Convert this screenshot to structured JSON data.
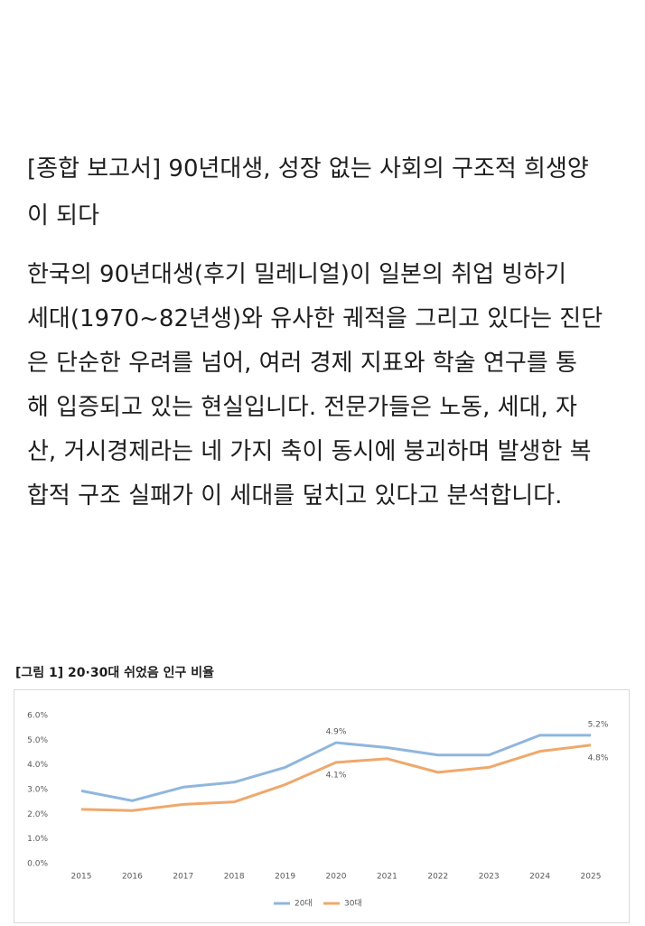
{
  "header": {
    "title_lines": [
      "[종합 보고서] 90년대생, 성장 없는 사회의 구조적 희생양",
      "이 되다"
    ]
  },
  "body": {
    "lines": [
      "한국의 90년대생(후기 밀레니얼)이 일본의 취업 빙하기",
      "세대(1970~82년생)와 유사한 궤적을 그리고 있다는 진단",
      "은 단순한 우려를 넘어, 여러 경제 지표와 학술 연구를 통",
      "해 입증되고 있는 현실입니다. 전문가들은 노동, 세대, 자",
      "산, 거시경제라는 네 가지 축이 동시에 붕괴하며 발생한 복",
      "합적 구조 실패가 이 세대를 덮치고 있다고 분석합니다."
    ]
  },
  "figure": {
    "caption": "[그림 1] 20·30대 쉬었음 인구 비율"
  },
  "chart_data": {
    "type": "line",
    "categories": [
      "2015",
      "2016",
      "2017",
      "2018",
      "2019",
      "2020",
      "2021",
      "2022",
      "2023",
      "2024",
      "2025"
    ],
    "series": [
      {
        "name": "20대",
        "color": "#8fb6de",
        "values": [
          2.95,
          2.55,
          3.1,
          3.3,
          3.9,
          4.9,
          4.7,
          4.4,
          4.4,
          5.2,
          5.2
        ],
        "value_labels": [
          null,
          null,
          null,
          null,
          null,
          "4.9%",
          null,
          null,
          null,
          null,
          "5.2%"
        ]
      },
      {
        "name": "30대",
        "color": "#efa86c",
        "values": [
          2.2,
          2.15,
          2.4,
          2.5,
          3.2,
          4.1,
          4.25,
          3.7,
          3.9,
          4.55,
          4.8
        ],
        "value_labels": [
          null,
          null,
          null,
          null,
          null,
          "4.1%",
          null,
          null,
          null,
          null,
          "4.8%"
        ]
      }
    ],
    "ylim": [
      0,
      6
    ],
    "yticks": [
      {
        "value": 0,
        "label": "0.0%"
      },
      {
        "value": 1,
        "label": "1.0%"
      },
      {
        "value": 2,
        "label": "2.0%"
      },
      {
        "value": 3,
        "label": "3.0%"
      },
      {
        "value": 4,
        "label": "4.0%"
      },
      {
        "value": 5,
        "label": "5.0%"
      },
      {
        "value": 6,
        "label": "6.0%"
      }
    ],
    "grid": false,
    "legend": "bottom"
  }
}
